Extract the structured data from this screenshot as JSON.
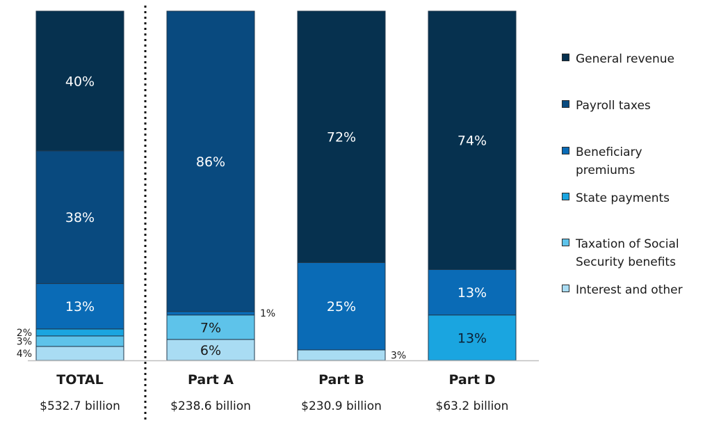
{
  "chart_data": {
    "type": "bar",
    "stacked": true,
    "normalized_percent": true,
    "categories": [
      "TOTAL",
      "Part A",
      "Part B",
      "Part D"
    ],
    "category_subtitles": [
      "$532.7 billion",
      "$238.6 billion",
      "$230.9 billion",
      "$63.2 billion"
    ],
    "series": [
      {
        "name": "Interest  and other",
        "color": "#a9dcf3",
        "values": [
          4,
          6,
          3,
          0
        ],
        "labels": [
          "4%",
          "6%",
          "3%",
          ""
        ]
      },
      {
        "name": "Taxation of Social Security benefits",
        "color": "#5ec3ea",
        "values": [
          3,
          7,
          0,
          0
        ],
        "labels": [
          "3%",
          "7%",
          "",
          ""
        ]
      },
      {
        "name": "State payments",
        "color": "#1aa5e0",
        "values": [
          2,
          0,
          0,
          13
        ],
        "labels": [
          "2%",
          "",
          "",
          "13%"
        ]
      },
      {
        "name": "Beneficiary premiums",
        "color": "#0a6bb6",
        "values": [
          13,
          1,
          25,
          13
        ],
        "labels": [
          "13%",
          "1%",
          "25%",
          "13%"
        ]
      },
      {
        "name": "Payroll taxes",
        "color": "#094a7f",
        "values": [
          38,
          86,
          0,
          0
        ],
        "labels": [
          "38%",
          "86%",
          "",
          ""
        ]
      },
      {
        "name": "General revenue",
        "color": "#06314f",
        "values": [
          40,
          0,
          72,
          74
        ],
        "labels": [
          "40%",
          "",
          "72%",
          "74%"
        ]
      }
    ],
    "ylim": [
      0,
      100
    ],
    "legend_position": "right",
    "grid": false,
    "divider_after_category": "TOTAL"
  }
}
